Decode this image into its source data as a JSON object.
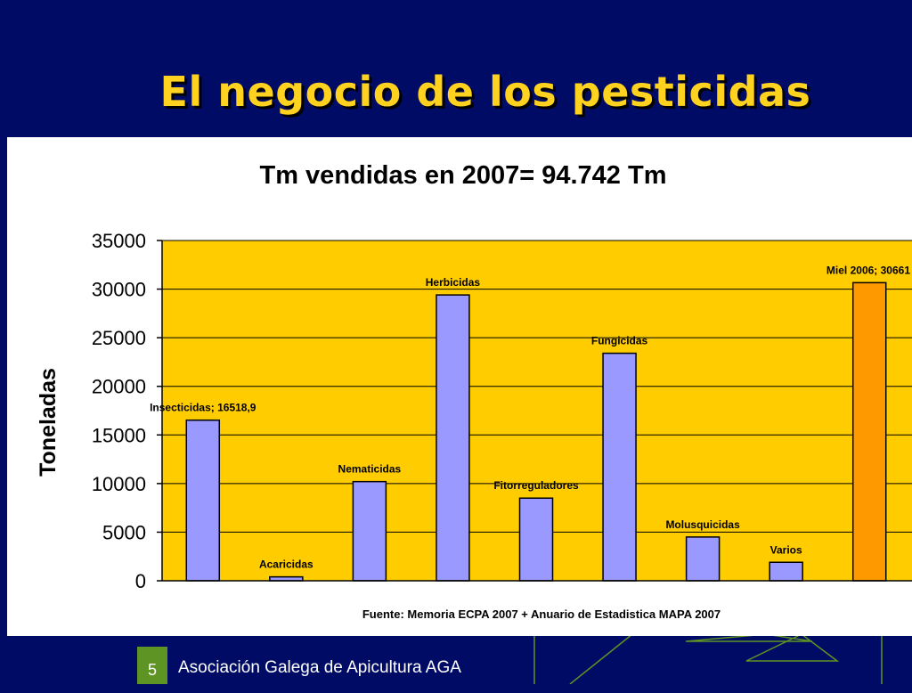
{
  "slide": {
    "title": "El negocio de los pesticidas",
    "footer_number": "5",
    "footer_text": "Asociación Galega de Apicultura AGA"
  },
  "colors": {
    "background": "#000b66",
    "title": "#ffd21f",
    "plot_area": "#ffcc00",
    "bar": "#9999ff",
    "highlight_bar": "#ff9900",
    "footer_badge": "#5e9424"
  },
  "chart_data": {
    "type": "bar",
    "title": "Tm vendidas en 2007= 94.742 Tm",
    "xlabel": "",
    "ylabel": "Toneladas",
    "ylim": [
      0,
      35000
    ],
    "yticks": [
      0,
      5000,
      10000,
      15000,
      20000,
      25000,
      30000,
      35000
    ],
    "grid": true,
    "legend": "none",
    "source_note": "Fuente: Memoria ECPA 2007 + Anuario de Estadistica MAPA 2007",
    "categories": [
      "Insecticidas",
      "Acaricidas",
      "Nematicidas",
      "Herbicidas",
      "Fitorreguladores",
      "Fungicidas",
      "Molusquicidas",
      "Varios",
      "Miel 2006"
    ],
    "values": [
      16518.9,
      400,
      10200,
      29400,
      8500,
      23400,
      4500,
      1900,
      30661
    ],
    "data_labels": [
      "Insecticidas; 16518,9",
      "Acaricidas",
      "Nematicidas",
      "Herbicidas",
      "Fitorreguladores",
      "Fungicidas",
      "Molusquicidas",
      "Varios",
      "Miel 2006; 30661"
    ],
    "bar_colors": [
      "#9999ff",
      "#9999ff",
      "#9999ff",
      "#9999ff",
      "#9999ff",
      "#9999ff",
      "#9999ff",
      "#9999ff",
      "#ff9900"
    ]
  }
}
